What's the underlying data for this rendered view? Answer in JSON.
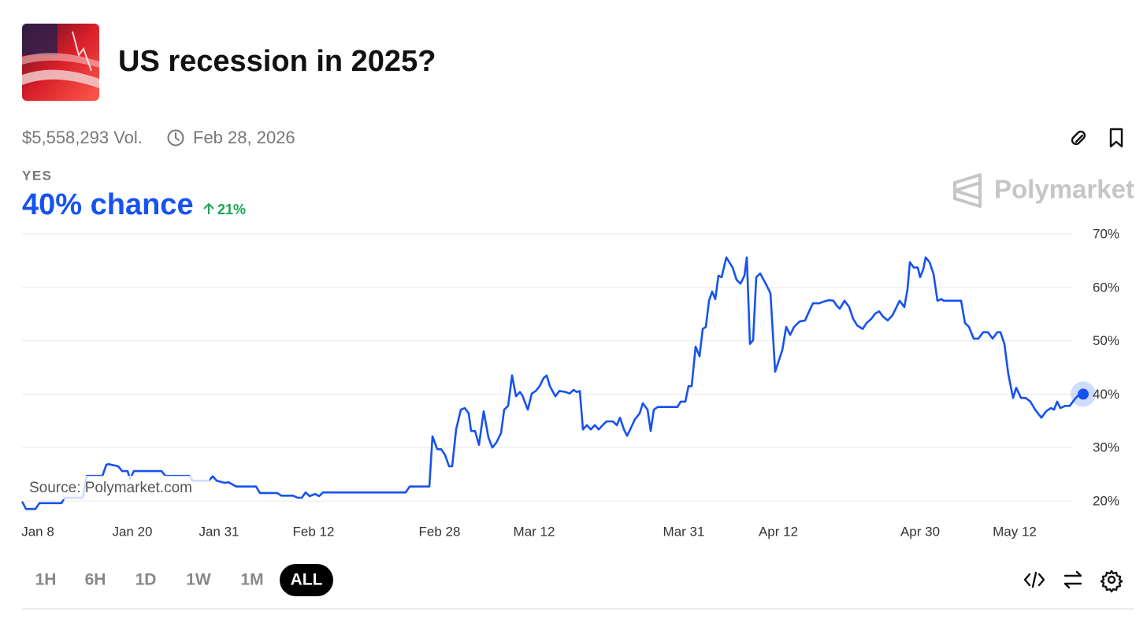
{
  "header": {
    "title": "US recession in 2025?"
  },
  "meta": {
    "volume": "$5,558,293 Vol.",
    "end_date": "Feb 28, 2026"
  },
  "outcome": {
    "label": "YES",
    "chance": "40% chance",
    "change": "21%"
  },
  "brand": "Polymarket",
  "chart_data": {
    "type": "line",
    "color": "#1652f0",
    "grid": true,
    "source": "Source: Polymarket.com",
    "x": [
      6.0,
      6.5,
      7.7,
      8.2,
      11.0,
      11.4,
      13.7,
      14.2,
      16.2,
      16.7,
      17.0,
      18.2,
      18.7,
      19.4,
      19.7,
      20.2,
      23.7,
      24.2,
      27.2,
      27.7,
      29.7,
      30.2,
      30.7,
      31.7,
      32.2,
      33.2,
      35.7,
      36.2,
      38.4,
      38.9,
      40.4,
      41.0,
      41.5,
      42.0,
      42.5,
      43.2,
      43.7,
      44.2,
      54.7,
      55.2,
      57.7,
      58.1,
      58.7,
      59.2,
      59.7,
      60.2,
      60.6,
      61.1,
      61.7,
      62.2,
      62.7,
      63.0,
      63.5,
      64.0,
      64.6,
      65.2,
      65.7,
      66.2,
      66.8,
      67.2,
      67.7,
      68.2,
      68.7,
      69.2,
      69.5,
      70.2,
      70.7,
      71.2,
      71.7,
      72.2,
      72.6,
      73.0,
      73.7,
      74.2,
      75.0,
      75.5,
      76.0,
      76.4,
      76.8,
      77.2,
      77.7,
      78.2,
      78.7,
      79.2,
      79.7,
      80.2,
      81.0,
      81.5,
      81.9,
      82.4,
      82.8,
      83.2,
      83.8,
      84.4,
      84.8,
      85.4,
      85.8,
      86.2,
      86.7,
      89.2,
      89.6,
      90.2,
      90.6,
      91.0,
      91.5,
      92.0,
      92.4,
      92.8,
      93.2,
      93.6,
      94.0,
      94.4,
      94.8,
      95.4,
      96.2,
      96.7,
      97.2,
      97.7,
      98.0,
      98.4,
      98.8,
      99.2,
      99.7,
      100.4,
      101.0,
      101.6,
      102.0,
      102.5,
      103.0,
      103.5,
      104.0,
      104.7,
      105.4,
      106.0,
      106.4,
      107.2,
      107.7,
      108.4,
      109.0,
      109.4,
      109.8,
      110.4,
      111.0,
      111.5,
      112.0,
      112.7,
      113.2,
      113.8,
      114.3,
      114.8,
      115.3,
      115.9,
      116.5,
      117.0,
      117.4,
      118.0,
      118.4,
      118.7,
      119.2,
      119.7,
      120.0,
      120.4,
      120.7,
      121.2,
      121.7,
      122.2,
      122.7,
      123.0,
      125.2,
      125.7,
      126.2,
      126.8,
      127.4,
      128.0,
      128.6,
      129.2,
      129.8,
      130.2,
      130.7,
      131.2,
      131.8,
      132.2,
      132.8,
      133.4,
      134.0,
      134.6,
      135.4,
      136.0,
      136.6,
      137.0,
      137.4,
      137.8,
      138.4,
      139.0,
      139.6,
      140.2,
      140.7
    ],
    "values": [
      19.9,
      18.5,
      18.5,
      19.6,
      19.6,
      20.6,
      20.6,
      24.7,
      24.7,
      26.8,
      26.9,
      26.5,
      25.6,
      25.6,
      24.1,
      25.6,
      25.6,
      24.7,
      24.7,
      23.8,
      23.8,
      24.6,
      23.8,
      23.4,
      23.5,
      22.7,
      22.7,
      21.5,
      21.5,
      21.0,
      21.0,
      20.6,
      20.6,
      21.6,
      20.9,
      21.3,
      20.9,
      21.6,
      21.6,
      22.7,
      22.7,
      32.1,
      29.7,
      29.7,
      28.6,
      26.5,
      26.5,
      33.4,
      37.1,
      37.4,
      36.4,
      33.1,
      33.1,
      30.5,
      36.8,
      31.9,
      30.0,
      30.9,
      32.7,
      37.1,
      37.8,
      43.5,
      39.6,
      40.4,
      39.8,
      37.1,
      40.1,
      40.6,
      41.5,
      43.0,
      43.5,
      41.5,
      39.6,
      40.6,
      40.4,
      40.1,
      40.8,
      40.4,
      40.6,
      33.4,
      34.2,
      33.4,
      34.2,
      33.4,
      34.2,
      34.9,
      34.9,
      34.2,
      35.6,
      33.4,
      32.2,
      33.4,
      35.3,
      36.4,
      38.3,
      37.1,
      33.1,
      37.1,
      37.6,
      37.6,
      38.6,
      38.6,
      41.5,
      41.5,
      48.9,
      47.1,
      52.2,
      52.6,
      57.5,
      59.2,
      57.8,
      62.2,
      61.9,
      65.6,
      63.7,
      61.4,
      60.7,
      62.2,
      65.6,
      49.4,
      50.1,
      61.9,
      62.6,
      60.7,
      58.9,
      44.2,
      46.0,
      48.2,
      52.6,
      51.1,
      52.6,
      53.6,
      53.8,
      55.8,
      57.0,
      57.0,
      57.3,
      57.6,
      57.5,
      56.6,
      56.0,
      57.5,
      56.3,
      54.1,
      52.9,
      52.2,
      53.3,
      54.1,
      55.1,
      55.5,
      54.5,
      53.8,
      54.8,
      56.3,
      57.5,
      56.3,
      59.7,
      64.7,
      63.7,
      63.7,
      61.9,
      63.4,
      65.6,
      64.7,
      62.5,
      57.5,
      57.8,
      57.5,
      57.5,
      53.3,
      52.6,
      50.4,
      50.4,
      51.6,
      51.6,
      50.4,
      51.6,
      51.6,
      49.4,
      43.7,
      39.3,
      41.2,
      39.3,
      39.3,
      38.6,
      37.1,
      35.6,
      36.8,
      37.4,
      37.1,
      38.6,
      37.4,
      37.8,
      37.8,
      39.0,
      40,
      40
    ],
    "xlim": [
      6,
      140.7
    ],
    "xticks": [
      {
        "value": 8,
        "label": "Jan 8"
      },
      {
        "value": 20,
        "label": "Jan 20"
      },
      {
        "value": 31,
        "label": "Jan 31"
      },
      {
        "value": 43,
        "label": "Feb 12"
      },
      {
        "value": 59,
        "label": "Feb 28"
      },
      {
        "value": 71,
        "label": "Mar 12"
      },
      {
        "value": 90,
        "label": "Mar 31"
      },
      {
        "value": 102,
        "label": "Apr 12"
      },
      {
        "value": 120,
        "label": "Apr 30"
      },
      {
        "value": 132,
        "label": "May 12"
      }
    ],
    "ylim": [
      18,
      70
    ],
    "yticks": [
      {
        "value": 20,
        "label": "20%"
      },
      {
        "value": 30,
        "label": "30%"
      },
      {
        "value": 40,
        "label": "40%"
      },
      {
        "value": 50,
        "label": "50%"
      },
      {
        "value": 60,
        "label": "60%"
      },
      {
        "value": 70,
        "label": "70%"
      }
    ]
  },
  "time_ranges": [
    "1H",
    "6H",
    "1D",
    "1W",
    "1M",
    "ALL"
  ],
  "selected_range": 5
}
